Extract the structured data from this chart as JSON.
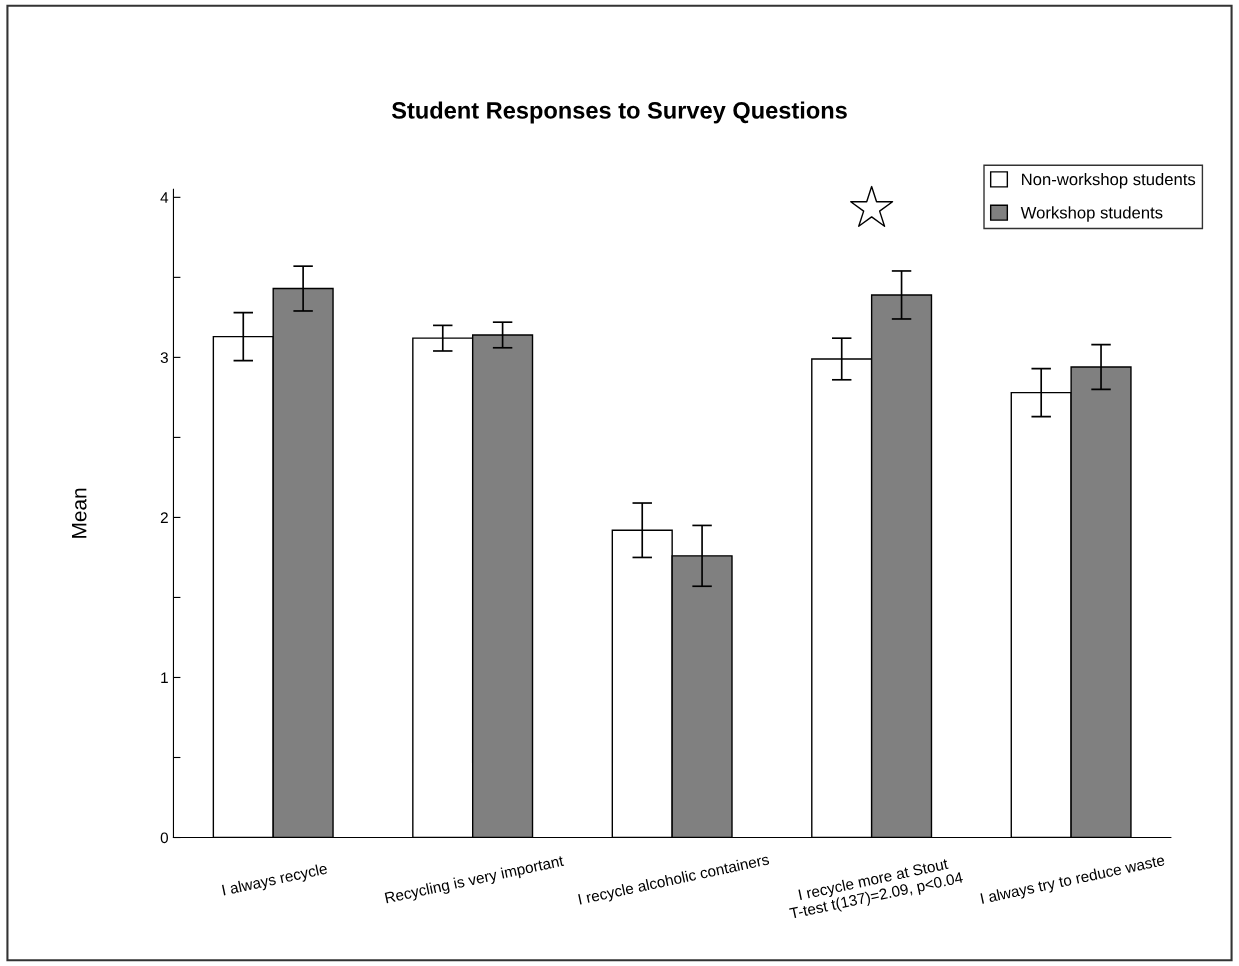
{
  "chart_data": {
    "type": "bar",
    "title": "Student Responses to Survey Questions",
    "ylabel": "Mean",
    "categories": [
      "I always recycle",
      "Recycling is very important",
      "I recycle alcoholic containers",
      "I recycle more at Stout\nT-test t(137)=2.09, p<0.04",
      "I always try to reduce waste"
    ],
    "series": [
      {
        "name": "Non-workshop students",
        "color": "#ffffff",
        "values": [
          3.13,
          3.12,
          1.92,
          2.99,
          2.78
        ],
        "errors": [
          0.15,
          0.08,
          0.17,
          0.13,
          0.15
        ]
      },
      {
        "name": "Workshop students",
        "color": "#808080",
        "values": [
          3.43,
          3.14,
          1.76,
          3.39,
          2.94
        ],
        "errors": [
          0.14,
          0.08,
          0.19,
          0.15,
          0.14
        ]
      }
    ],
    "ylim": [
      0,
      4.05
    ],
    "yticks": [
      0,
      {
        "value": 0.5,
        "label": null
      },
      1,
      {
        "value": 1.5,
        "label": null
      },
      2,
      {
        "value": 2.5,
        "label": null
      },
      3,
      {
        "value": 3.5,
        "label": null
      },
      4
    ],
    "grid": false,
    "legend": "top right"
  }
}
